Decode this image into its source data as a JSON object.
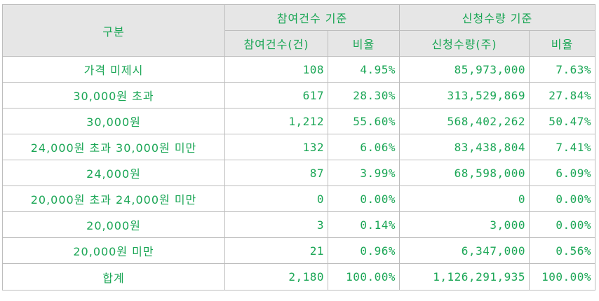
{
  "header": {
    "category": "구분",
    "group_count": "참여건수 기준",
    "group_quantity": "신청수량 기준",
    "count_col": "참여건수(건)",
    "count_ratio": "비율",
    "qty_col": "신청수량(주)",
    "qty_ratio": "비율"
  },
  "rows": [
    {
      "label": "가격 미제시",
      "count": "108",
      "count_ratio": "4.95%",
      "qty": "85,973,000",
      "qty_ratio": "7.63%"
    },
    {
      "label": "30,000원 초과",
      "count": "617",
      "count_ratio": "28.30%",
      "qty": "313,529,869",
      "qty_ratio": "27.84%"
    },
    {
      "label": "30,000원",
      "count": "1,212",
      "count_ratio": "55.60%",
      "qty": "568,402,262",
      "qty_ratio": "50.47%"
    },
    {
      "label": "24,000원 초과 30,000원 미만",
      "count": "132",
      "count_ratio": "6.06%",
      "qty": "83,438,804",
      "qty_ratio": "7.41%"
    },
    {
      "label": "24,000원",
      "count": "87",
      "count_ratio": "3.99%",
      "qty": "68,598,000",
      "qty_ratio": "6.09%"
    },
    {
      "label": "20,000원 초과 24,000원 미만",
      "count": "0",
      "count_ratio": "0.00%",
      "qty": "0",
      "qty_ratio": "0.00%"
    },
    {
      "label": "20,000원",
      "count": "3",
      "count_ratio": "0.14%",
      "qty": "3,000",
      "qty_ratio": "0.00%"
    },
    {
      "label": "20,000원 미만",
      "count": "21",
      "count_ratio": "0.96%",
      "qty": "6,347,000",
      "qty_ratio": "0.56%"
    },
    {
      "label": "합계",
      "count": "2,180",
      "count_ratio": "100.00%",
      "qty": "1,126,291,935",
      "qty_ratio": "100.00%"
    }
  ],
  "colors": {
    "text": "#1aa655",
    "header_bg": "#e6e6e6",
    "border": "#bdbdbd"
  }
}
